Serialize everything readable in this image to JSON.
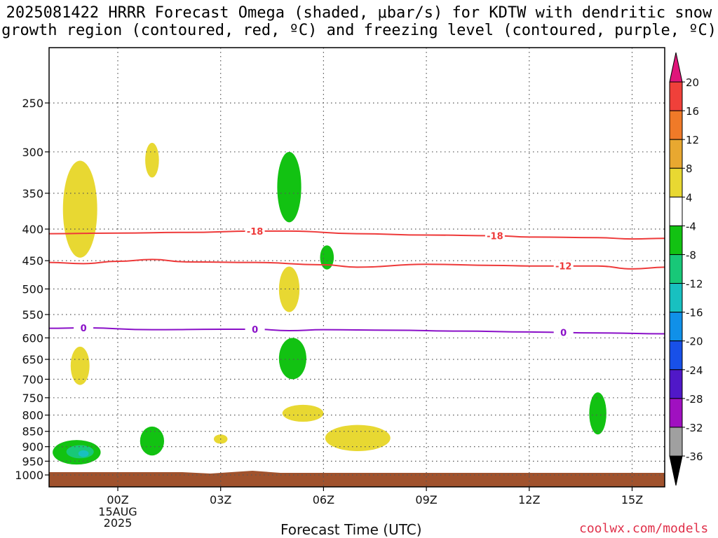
{
  "title": {
    "line1": "2025081422 HRRR Forecast Omega (shaded, μbar/s) for KDTW with dendritic snow",
    "line2": "growth region (contoured, red, ºC) and freezing level (contoured, purple, ºC)"
  },
  "chart_data": {
    "type": "contour",
    "station": "KDTW",
    "model": "HRRR",
    "init": "2025081422",
    "xlabel": "Forecast Time (UTC)",
    "x_ticks": [
      {
        "hour": 0,
        "label": "00Z",
        "sub": [
          "15AUG",
          "2025"
        ]
      },
      {
        "hour": 3,
        "label": "03Z"
      },
      {
        "hour": 6,
        "label": "06Z"
      },
      {
        "hour": 9,
        "label": "09Z"
      },
      {
        "hour": 12,
        "label": "12Z"
      },
      {
        "hour": 15,
        "label": "15Z"
      }
    ],
    "xlim": [
      -2,
      16
    ],
    "y_ticks": [
      250,
      300,
      350,
      400,
      450,
      500,
      550,
      600,
      650,
      700,
      750,
      800,
      850,
      900,
      950,
      1000
    ],
    "ylim_hPa": [
      200,
      1000
    ],
    "colorbar": {
      "labels": [
        "20",
        "16",
        "12",
        "8",
        "4",
        "-4",
        "-8",
        "-12",
        "-16",
        "-20",
        "-24",
        "-28",
        "-32",
        "-36"
      ],
      "colors": [
        "#e0157a",
        "#f0403a",
        "#f07a28",
        "#e8a830",
        "#e8d832",
        "#ffffff",
        "#12c212",
        "#18c878",
        "#18c0c0",
        "#1090e8",
        "#1850e8",
        "#5018c8",
        "#a010c0",
        "#a0a0a0",
        "#000000"
      ]
    },
    "contours": {
      "dgz_red": [
        {
          "label": "-18",
          "label_positions": [
            4,
            11
          ],
          "points": [
            [
              -2,
              407
            ],
            [
              0,
              406
            ],
            [
              2,
              405
            ],
            [
              4,
              403
            ],
            [
              5,
              403
            ],
            [
              7,
              407
            ],
            [
              9,
              409
            ],
            [
              11,
              410
            ],
            [
              12,
              412
            ],
            [
              14,
              413
            ],
            [
              15,
              415
            ],
            [
              16,
              414
            ]
          ]
        },
        {
          "label": "-12",
          "label_positions": [
            13
          ],
          "points": [
            [
              -2,
              453
            ],
            [
              -1,
              455
            ],
            [
              0,
              451
            ],
            [
              1,
              448
            ],
            [
              2,
              452
            ],
            [
              4,
              453
            ],
            [
              6,
              457
            ],
            [
              7,
              461
            ],
            [
              9,
              456
            ],
            [
              11,
              458
            ],
            [
              12,
              459
            ],
            [
              14,
              459
            ],
            [
              15,
              464
            ],
            [
              16,
              461
            ]
          ]
        }
      ],
      "freezing_purple": {
        "label": "0",
        "label_positions": [
          -1,
          4,
          13
        ],
        "points": [
          [
            -2,
            579
          ],
          [
            -1,
            578
          ],
          [
            1,
            582
          ],
          [
            3,
            581
          ],
          [
            4,
            581
          ],
          [
            5,
            584
          ],
          [
            6,
            582
          ],
          [
            8,
            583
          ],
          [
            10,
            585
          ],
          [
            12,
            587
          ],
          [
            14,
            589
          ],
          [
            16,
            591
          ]
        ]
      }
    },
    "omega_blobs": [
      {
        "value": "4 to 8",
        "color": "#e8d832",
        "center": [
          -1.1,
          375
        ],
        "width_h": 1.0,
        "top": 310,
        "bottom": 445
      },
      {
        "value": "4 to 8",
        "color": "#e8d832",
        "center": [
          1.0,
          310
        ],
        "width_h": 0.4,
        "top": 290,
        "bottom": 330
      },
      {
        "value": "4 to 8",
        "color": "#e8d832",
        "center": [
          5.0,
          505
        ],
        "width_h": 0.6,
        "top": 460,
        "bottom": 545
      },
      {
        "value": "4 to 8",
        "color": "#e8d832",
        "center": [
          -1.1,
          665
        ],
        "width_h": 0.55,
        "top": 620,
        "bottom": 715
      },
      {
        "value": "4 to 8",
        "color": "#e8d832",
        "center": [
          5.4,
          795
        ],
        "width_h": 1.2,
        "top": 770,
        "bottom": 820
      },
      {
        "value": "4 to 8",
        "color": "#e8d832",
        "center": [
          3.0,
          875
        ],
        "width_h": 0.4,
        "top": 860,
        "bottom": 890
      },
      {
        "value": "4 to 8",
        "color": "#e8d832",
        "center": [
          7.0,
          870
        ],
        "width_h": 1.9,
        "top": 830,
        "bottom": 915
      },
      {
        "value": "-4 to -8",
        "color": "#12c212",
        "center": [
          5.0,
          350
        ],
        "width_h": 0.7,
        "top": 300,
        "bottom": 390
      },
      {
        "value": "-4 to -8",
        "color": "#12c212",
        "center": [
          6.1,
          445
        ],
        "width_h": 0.4,
        "top": 425,
        "bottom": 465
      },
      {
        "value": "-4 to -8",
        "color": "#12c212",
        "center": [
          5.1,
          650
        ],
        "width_h": 0.8,
        "top": 600,
        "bottom": 700
      },
      {
        "value": "-4 to -8",
        "color": "#12c212",
        "center": [
          1.0,
          880
        ],
        "width_h": 0.7,
        "top": 835,
        "bottom": 930
      },
      {
        "value": "-4 to -8",
        "color": "#12c212",
        "center": [
          14.0,
          790
        ],
        "width_h": 0.5,
        "top": 735,
        "bottom": 860
      },
      {
        "value": "-4 to -8",
        "color": "#12c212",
        "center": [
          -1.2,
          920
        ],
        "width_h": 1.4,
        "top": 878,
        "bottom": 962
      },
      {
        "value": "-8 to -12",
        "color": "#18c878",
        "center": [
          -1.1,
          915
        ],
        "width_h": 0.8,
        "top": 895,
        "bottom": 940
      },
      {
        "value": "-12 to -16",
        "color": "#18c0c0",
        "center": [
          -1.0,
          923
        ],
        "width_h": 0.3,
        "top": 912,
        "bottom": 935
      }
    ],
    "terrain": {
      "color": "#a0522d",
      "label": "surface"
    }
  },
  "footer": {
    "credit": "coolwx.com/models"
  }
}
